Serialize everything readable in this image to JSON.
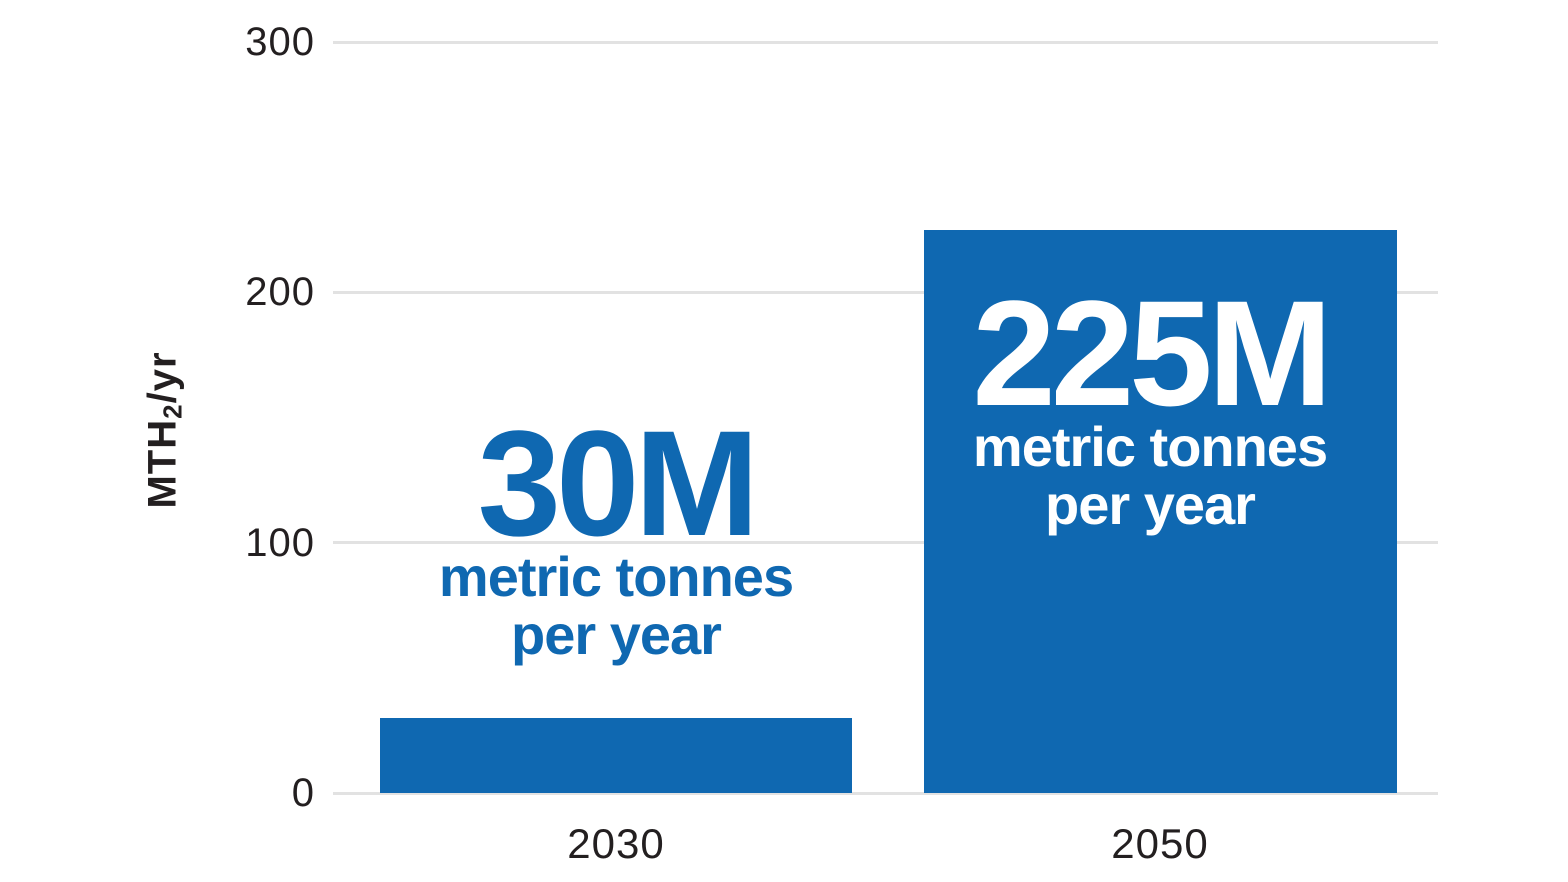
{
  "chart_data": {
    "type": "bar",
    "title": "",
    "categories": [
      "2030",
      "2050"
    ],
    "values": [
      30,
      225
    ],
    "value_labels": [
      "30M",
      "225M"
    ],
    "unit_labels": [
      [
        "metric tonnes",
        "per year"
      ],
      [
        "metric tonnes",
        "per year"
      ]
    ],
    "ylabel": "MTH2/yr",
    "ylabel_parts": {
      "main": "MTH",
      "sub": "2",
      "rest": "/yr"
    },
    "yticks": [
      0,
      100,
      200,
      300
    ],
    "ylim": [
      0,
      300
    ],
    "xlabel": "",
    "grid": true,
    "legend_position": "none",
    "colors": {
      "bar": "#0f68b1",
      "value_label_above_bar": "#0f68b1",
      "value_label_on_bar": "#ffffff",
      "gridline": "#e2e2e2",
      "axis_text": "#231f20",
      "background": "#ffffff"
    }
  }
}
